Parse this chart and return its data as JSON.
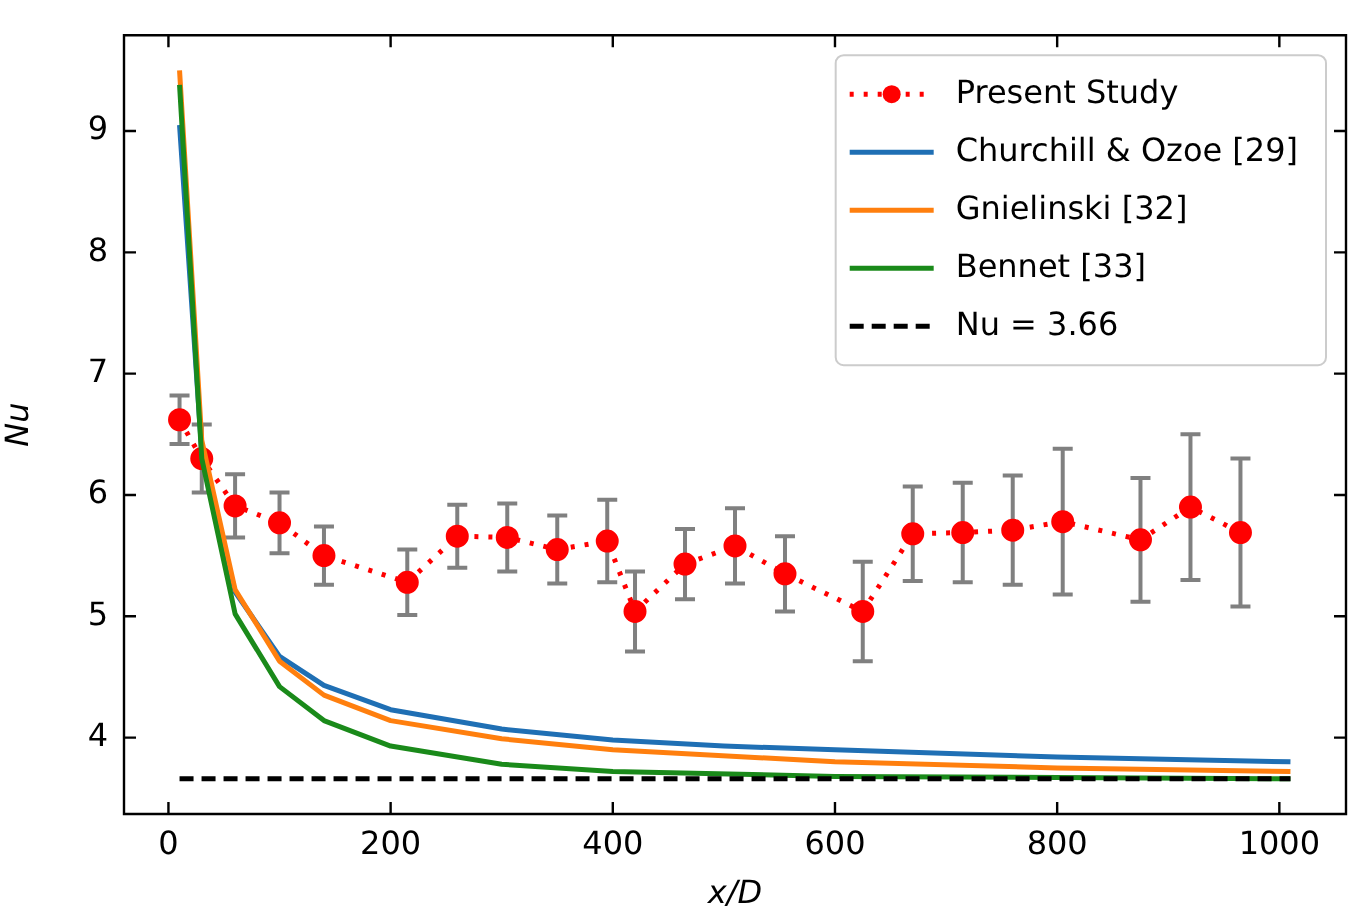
{
  "chart_data": {
    "type": "line",
    "xlabel": "x/D",
    "ylabel": "Nu",
    "xlim": [
      -40,
      1060
    ],
    "ylim": [
      3.37,
      9.79
    ],
    "xticks": [
      0,
      200,
      400,
      600,
      800,
      1000
    ],
    "yticks": [
      4,
      5,
      6,
      7,
      8,
      9
    ],
    "grid": false,
    "legend": "top right",
    "series": [
      {
        "name": "Present Study",
        "color": "#ff0000",
        "marker": "circle",
        "line_style": "dotted",
        "x": [
          10,
          30,
          60,
          100,
          140,
          215,
          260,
          305,
          350,
          395,
          420,
          465,
          510,
          555,
          625,
          670,
          715,
          760,
          805,
          875,
          920,
          965
        ],
        "values": [
          6.62,
          6.3,
          5.91,
          5.77,
          5.5,
          5.28,
          5.66,
          5.65,
          5.55,
          5.62,
          5.04,
          5.43,
          5.58,
          5.35,
          5.04,
          5.68,
          5.69,
          5.71,
          5.78,
          5.63,
          5.9,
          5.69
        ],
        "errors": [
          0.2,
          0.28,
          0.26,
          0.25,
          0.24,
          0.27,
          0.26,
          0.28,
          0.28,
          0.34,
          0.33,
          0.29,
          0.31,
          0.31,
          0.41,
          0.39,
          0.41,
          0.45,
          0.6,
          0.51,
          0.6,
          0.61
        ]
      },
      {
        "name": "Churchill & Ozoe [29]",
        "color": "#1f6fb4",
        "marker": "none",
        "line_style": "solid",
        "x": [
          10,
          30,
          60,
          100,
          140,
          200,
          300,
          400,
          500,
          600,
          800,
          1010
        ],
        "values": [
          9.05,
          6.35,
          5.2,
          4.67,
          4.43,
          4.23,
          4.07,
          3.98,
          3.93,
          3.9,
          3.84,
          3.8
        ]
      },
      {
        "name": "Gnielinski [32]",
        "color": "#ff7f0e",
        "marker": "none",
        "line_style": "solid",
        "x": [
          10,
          30,
          60,
          100,
          140,
          200,
          300,
          400,
          600,
          800,
          1010
        ],
        "values": [
          9.5,
          6.45,
          5.22,
          4.63,
          4.35,
          4.14,
          3.99,
          3.9,
          3.8,
          3.75,
          3.72
        ]
      },
      {
        "name": "Bennet [33]",
        "color": "#1a8a1a",
        "marker": "none",
        "line_style": "solid",
        "x": [
          10,
          30,
          60,
          100,
          140,
          200,
          300,
          400,
          600,
          1010
        ],
        "values": [
          9.38,
          6.3,
          5.02,
          4.42,
          4.14,
          3.93,
          3.78,
          3.72,
          3.68,
          3.66
        ]
      },
      {
        "name": "Nu = 3.66",
        "color": "#000000",
        "marker": "none",
        "line_style": "dashed",
        "x": [
          10,
          1010
        ],
        "values": [
          3.66,
          3.66
        ]
      }
    ]
  }
}
